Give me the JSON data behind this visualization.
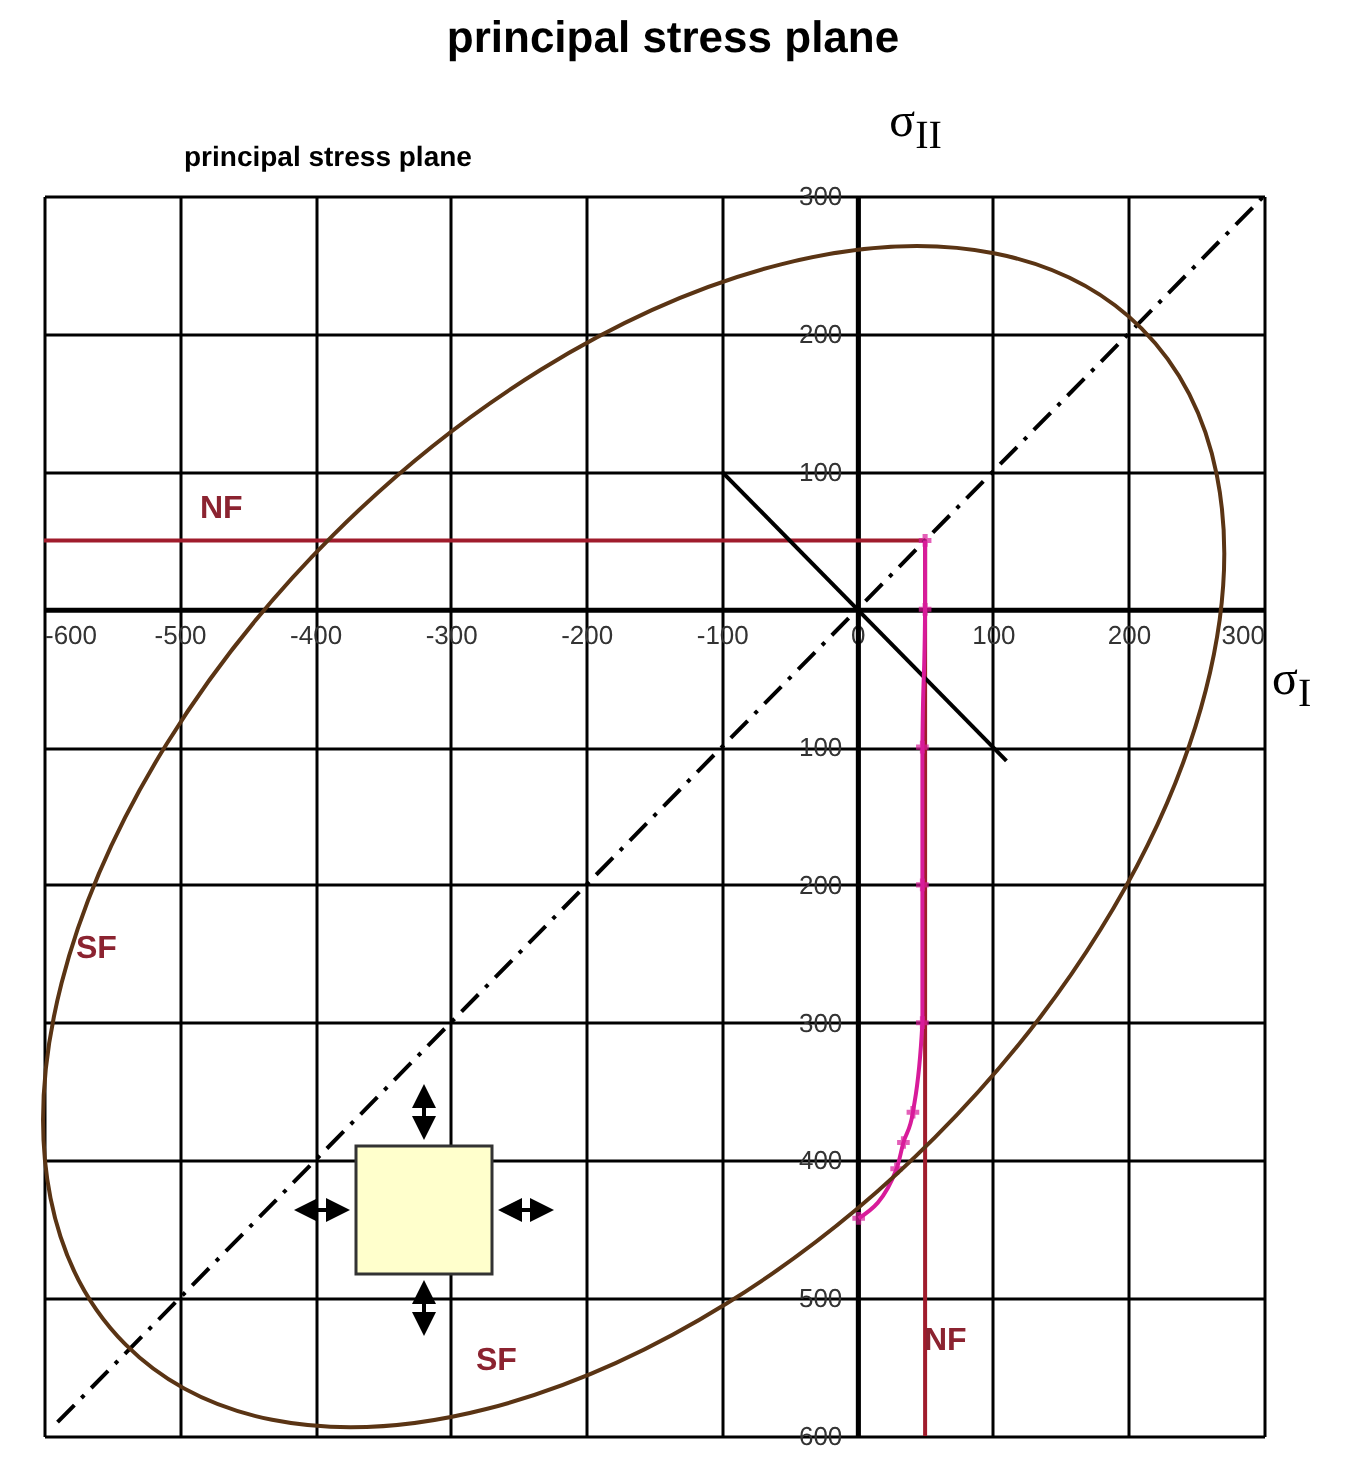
{
  "chart_data": {
    "type": "line",
    "title": "principal stress plane",
    "subtitle": "principal stress plane",
    "xlabel": "σ$_{I}$",
    "ylabel": "σ$_{II}$",
    "xlim": [
      -600,
      300
    ],
    "ylim": [
      -600,
      300
    ],
    "xticks": [
      -600,
      -500,
      -400,
      -300,
      -200,
      -100,
      0,
      100,
      200,
      300
    ],
    "yticks": [
      {
        "value": -600,
        "label": "600"
      },
      {
        "value": -500,
        "label": "500"
      },
      {
        "value": -400,
        "label": "400"
      },
      {
        "value": -300,
        "label": "300"
      },
      {
        "value": -200,
        "label": "200"
      },
      {
        "value": -100,
        "label": "100"
      },
      100,
      200,
      300
    ],
    "grid": true,
    "series": [
      {
        "color": "#a01c2c",
        "x": [
          -600,
          50,
          50
        ],
        "values": [
          50,
          50,
          -600
        ]
      },
      {
        "color": "#000000",
        "x": [
          -100,
          110
        ],
        "values": [
          100,
          -110
        ]
      },
      {
        "color": "#000000",
        "line_style": "dashed",
        "x": [
          -590,
          300
        ],
        "values": [
          -590,
          300
        ]
      },
      {
        "color": "#d81b9a",
        "marker": "cross",
        "x": [
          50,
          50,
          48,
          48,
          48,
          41,
          34,
          29,
          1
        ],
        "values": [
          50,
          0,
          -100,
          -200,
          -300,
          -365,
          -387,
          -406,
          -442
        ]
      }
    ],
    "annotations": [
      "NF",
      "NF",
      "SF",
      "SF"
    ]
  }
}
